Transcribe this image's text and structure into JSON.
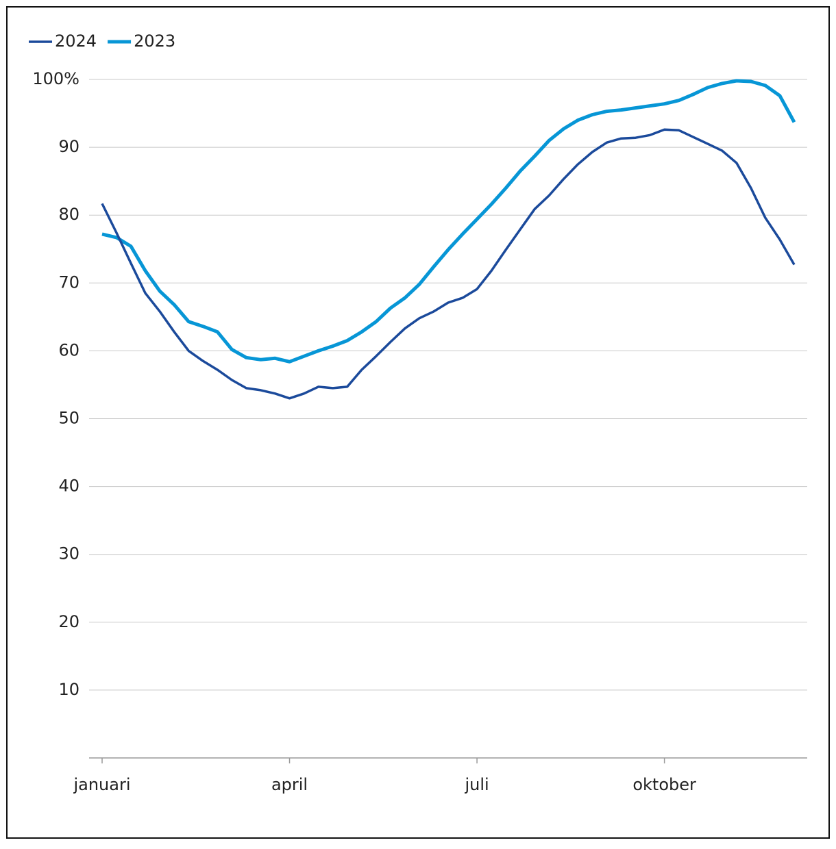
{
  "chart_data": {
    "type": "line",
    "categories": [
      "januari",
      null,
      null,
      null,
      null,
      null,
      null,
      null,
      null,
      null,
      null,
      null,
      null,
      "april",
      null,
      null,
      null,
      null,
      null,
      null,
      null,
      null,
      null,
      null,
      null,
      null,
      "juli",
      null,
      null,
      null,
      null,
      null,
      null,
      null,
      null,
      null,
      null,
      null,
      null,
      "oktober",
      null,
      null,
      null,
      null,
      null,
      null,
      null,
      null,
      null
    ],
    "series": [
      {
        "name": "2024",
        "color": "#1b4a9b",
        "values": [
          81.7,
          77.4,
          72.9,
          68.5,
          65.8,
          62.8,
          60,
          58.5,
          57.2,
          55.7,
          54.5,
          54.2,
          53.7,
          53,
          53.7,
          54.7,
          54.5,
          54.7,
          57.2,
          59.2,
          61.3,
          63.3,
          64.8,
          65.8,
          67.1,
          67.8,
          69.1,
          71.8,
          74.9,
          77.9,
          80.9,
          82.9,
          85.3,
          87.5,
          89.3,
          90.7,
          91.3,
          91.4,
          91.8,
          92.6,
          92.5,
          91.5,
          90.5,
          89.5,
          87.7,
          84,
          79.6,
          76.4,
          72.7
        ]
      },
      {
        "name": "2023",
        "color": "#0796d6",
        "values": [
          77.2,
          76.7,
          75.4,
          71.8,
          68.8,
          66.8,
          64.3,
          63.6,
          62.8,
          60.2,
          59,
          58.7,
          58.9,
          58.4,
          59.2,
          60,
          60.7,
          61.5,
          62.8,
          64.3,
          66.3,
          67.8,
          69.8,
          72.4,
          74.9,
          77.2,
          79.4,
          81.6,
          84,
          86.5,
          88.7,
          91,
          92.7,
          94,
          94.8,
          95.3,
          95.5,
          95.8,
          96.1,
          96.4,
          96.9,
          97.8,
          98.8,
          99.4,
          99.8,
          99.7,
          99.1,
          97.6,
          93.7
        ]
      }
    ],
    "ylim": [
      0,
      100
    ],
    "yticks": [
      10,
      20,
      30,
      40,
      50,
      60,
      70,
      80,
      90,
      {
        "value": 100,
        "label": "100%"
      }
    ],
    "grid": true,
    "legend": "top-left"
  }
}
